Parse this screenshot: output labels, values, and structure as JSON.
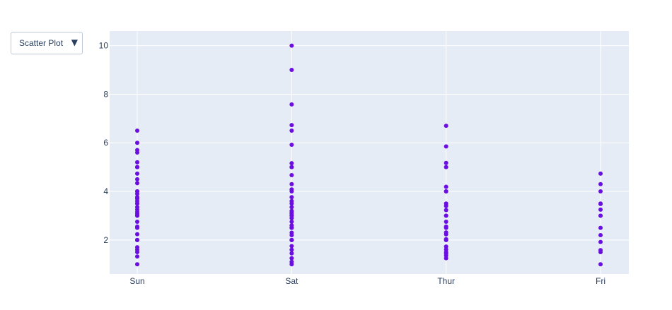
{
  "controls": {
    "dropdown_label": "Scatter Plot",
    "dropdown_arrow": "▼",
    "dropdown_icon": "triangle-down-icon"
  },
  "chart_data": {
    "type": "scatter",
    "title": "",
    "xlabel": "",
    "ylabel": "",
    "categories": [
      "Sun",
      "Sat",
      "Thur",
      "Fri"
    ],
    "ylim": [
      0.6,
      10.6
    ],
    "yticks": [
      2,
      4,
      6,
      8,
      10
    ],
    "grid": true,
    "marker_color": "#6a0fe0",
    "plot_background": "#e5ecf6",
    "grid_color": "#ffffff",
    "series": [
      {
        "category": "Sun",
        "values": [
          1.0,
          1.32,
          1.5,
          1.6,
          1.7,
          2.0,
          2.0,
          2.0,
          2.24,
          2.5,
          2.55,
          2.75,
          3.0,
          3.0,
          3.07,
          3.15,
          3.25,
          3.35,
          3.5,
          3.5,
          3.6,
          3.7,
          3.76,
          3.9,
          4.0,
          4.0,
          4.34,
          4.5,
          4.73,
          5.0,
          5.0,
          5.2,
          5.6,
          5.7,
          6.0,
          6.5
        ]
      },
      {
        "category": "Sat",
        "values": [
          1.0,
          1.1,
          1.25,
          1.45,
          1.6,
          1.75,
          2.0,
          2.0,
          2.0,
          2.2,
          2.3,
          2.5,
          2.5,
          2.6,
          2.75,
          2.9,
          3.0,
          3.0,
          3.08,
          3.15,
          3.2,
          3.35,
          3.5,
          3.6,
          3.76,
          4.0,
          4.08,
          4.3,
          4.67,
          5.0,
          5.0,
          5.16,
          5.92,
          6.5,
          6.73,
          7.58,
          9.0,
          10.0
        ]
      },
      {
        "category": "Thur",
        "values": [
          1.25,
          1.36,
          1.44,
          1.5,
          1.61,
          1.73,
          2.0,
          2.0,
          2.03,
          2.23,
          2.31,
          2.5,
          2.55,
          2.75,
          3.0,
          3.0,
          3.23,
          3.4,
          3.5,
          4.0,
          4.0,
          4.19,
          5.0,
          5.17,
          5.85,
          6.7
        ]
      },
      {
        "category": "Fri",
        "values": [
          1.0,
          1.5,
          1.58,
          1.92,
          2.2,
          2.5,
          3.0,
          3.0,
          3.25,
          3.48,
          3.5,
          4.0,
          4.3,
          4.73
        ]
      }
    ]
  }
}
